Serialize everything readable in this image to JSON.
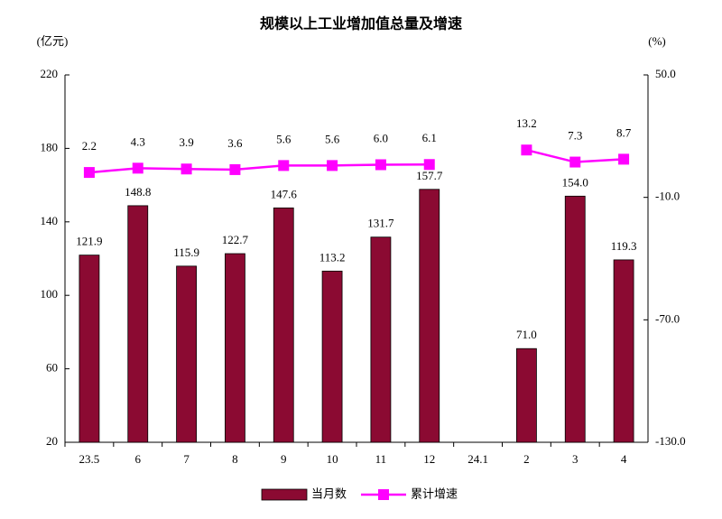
{
  "chart_data": {
    "type": "bar-line",
    "title": "规模以上工业增加值总量及增速",
    "y_label": "(亿元)",
    "y2_label": "(%)",
    "categories": [
      "23.5",
      "6",
      "7",
      "8",
      "9",
      "10",
      "11",
      "12",
      "24.1",
      "2",
      "3",
      "4"
    ],
    "series": [
      {
        "name": "当月数",
        "type": "bar",
        "color": "#8b0a32",
        "values": [
          121.9,
          148.8,
          115.9,
          122.7,
          147.6,
          113.2,
          131.7,
          157.7,
          null,
          71.0,
          154.0,
          119.3
        ],
        "value_labels": [
          "121.9",
          "148.8",
          "115.9",
          "122.7",
          "147.6",
          "113.2",
          "131.7",
          "157.7",
          null,
          "71.0",
          "154.0",
          "119.3"
        ]
      },
      {
        "name": "累计增速",
        "type": "line",
        "axis": "y2",
        "color": "#ff00ff",
        "values": [
          2.2,
          4.3,
          3.9,
          3.6,
          5.6,
          5.6,
          6.0,
          6.1,
          null,
          13.2,
          7.3,
          8.7
        ],
        "value_labels": [
          "2.2",
          "4.3",
          "3.9",
          "3.6",
          "5.6",
          "5.6",
          "6.0",
          "6.1",
          null,
          "13.2",
          "7.3",
          "8.7"
        ]
      }
    ],
    "ylim": [
      20,
      220
    ],
    "yticks": [
      20,
      60,
      100,
      140,
      180,
      220
    ],
    "y2lim": [
      -130,
      50
    ],
    "y2ticks": [
      {
        "value": -130,
        "label": "-130.0"
      },
      {
        "value": -70,
        "label": "-70.0"
      },
      {
        "value": -10,
        "label": "-10.0"
      },
      {
        "value": 50,
        "label": "50.0"
      }
    ],
    "legend": "bottom"
  }
}
